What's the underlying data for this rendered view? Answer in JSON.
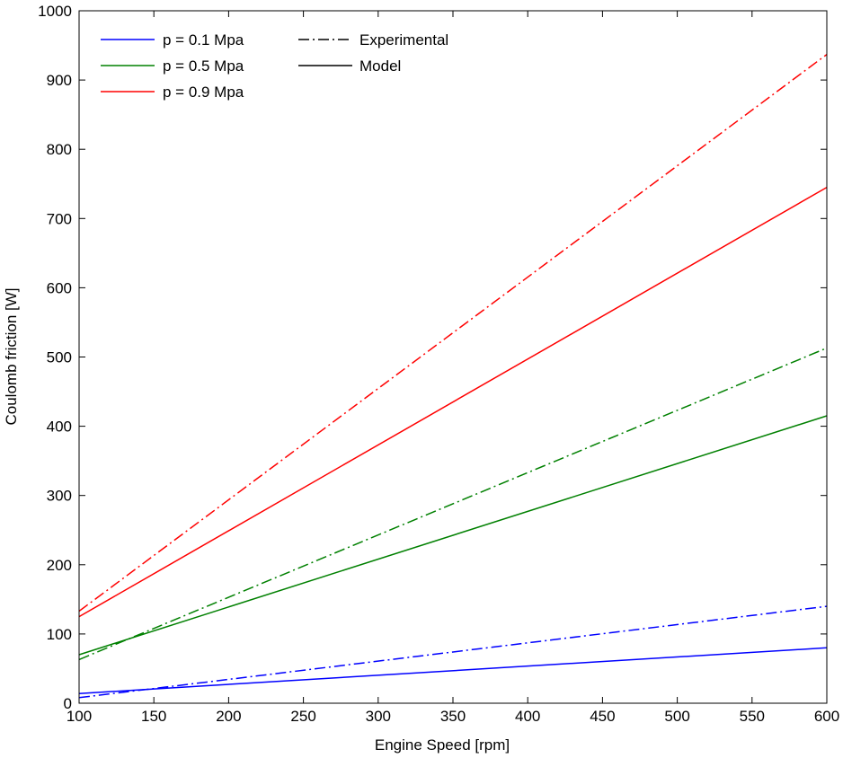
{
  "chart_data": {
    "type": "line",
    "title": "",
    "xlabel": "Engine Speed [rpm]",
    "ylabel": "Coulomb friction [W]",
    "xlim": [
      100,
      600
    ],
    "ylim": [
      0,
      1000
    ],
    "xticks": [
      100,
      150,
      200,
      250,
      300,
      350,
      400,
      450,
      500,
      550,
      600
    ],
    "yticks": [
      0,
      100,
      200,
      300,
      400,
      500,
      600,
      700,
      800,
      900,
      1000
    ],
    "grid": false,
    "legend": {
      "placement": "top-left",
      "color_entries": [
        {
          "label": "p = 0.1 Mpa",
          "color": "#0000ff"
        },
        {
          "label": "p = 0.5 Mpa",
          "color": "#008000"
        },
        {
          "label": "p = 0.9 Mpa",
          "color": "#ff0000"
        }
      ],
      "style_entries": [
        {
          "label": "Experimental",
          "style": "dashdot"
        },
        {
          "label": "Model",
          "style": "solid"
        }
      ]
    },
    "series": [
      {
        "pressure": "p = 0.1 Mpa",
        "kind": "Experimental",
        "color": "#0000ff",
        "style": "dashdot",
        "x": [
          100,
          600
        ],
        "y": [
          8,
          140
        ]
      },
      {
        "pressure": "p = 0.1 Mpa",
        "kind": "Model",
        "color": "#0000ff",
        "style": "solid",
        "x": [
          100,
          600
        ],
        "y": [
          14,
          80
        ]
      },
      {
        "pressure": "p = 0.5 Mpa",
        "kind": "Experimental",
        "color": "#008000",
        "style": "dashdot",
        "x": [
          100,
          600
        ],
        "y": [
          63,
          513
        ]
      },
      {
        "pressure": "p = 0.5 Mpa",
        "kind": "Model",
        "color": "#008000",
        "style": "solid",
        "x": [
          100,
          600
        ],
        "y": [
          70,
          415
        ]
      },
      {
        "pressure": "p = 0.9 Mpa",
        "kind": "Experimental",
        "color": "#ff0000",
        "style": "dashdot",
        "x": [
          100,
          600
        ],
        "y": [
          133,
          937
        ]
      },
      {
        "pressure": "p = 0.9 Mpa",
        "kind": "Model",
        "color": "#ff0000",
        "style": "solid",
        "x": [
          100,
          600
        ],
        "y": [
          125,
          745
        ]
      }
    ]
  }
}
